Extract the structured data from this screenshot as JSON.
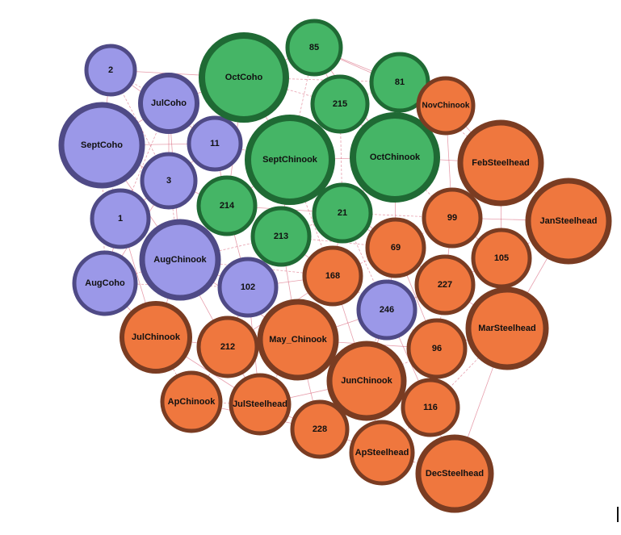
{
  "palette": {
    "purple": {
      "fill": "#9b98e8",
      "stroke": "#4f4a86"
    },
    "green": {
      "fill": "#45b566",
      "stroke": "#1f6a34"
    },
    "orange": {
      "fill": "#ef773e",
      "stroke": "#7a3c22"
    },
    "edge": "#d4506a"
  },
  "nodes": [
    {
      "id": "2",
      "label": "2",
      "group": "purple"
    },
    {
      "id": "JulCoho",
      "label": "JulCoho",
      "group": "purple"
    },
    {
      "id": "SeptCoho",
      "label": "SeptCoho",
      "group": "purple"
    },
    {
      "id": "11",
      "label": "11",
      "group": "purple"
    },
    {
      "id": "3",
      "label": "3",
      "group": "purple"
    },
    {
      "id": "1",
      "label": "1",
      "group": "purple"
    },
    {
      "id": "AugChinook",
      "label": "AugChinook",
      "group": "purple"
    },
    {
      "id": "AugCoho",
      "label": "AugCoho",
      "group": "purple"
    },
    {
      "id": "102",
      "label": "102",
      "group": "purple"
    },
    {
      "id": "246",
      "label": "246",
      "group": "purple"
    },
    {
      "id": "OctCoho",
      "label": "OctCoho",
      "group": "green"
    },
    {
      "id": "85",
      "label": "85",
      "group": "green"
    },
    {
      "id": "215",
      "label": "215",
      "group": "green"
    },
    {
      "id": "81",
      "label": "81",
      "group": "green"
    },
    {
      "id": "SeptChinook",
      "label": "SeptChinook",
      "group": "green"
    },
    {
      "id": "OctChinook",
      "label": "OctChinook",
      "group": "green"
    },
    {
      "id": "214",
      "label": "214",
      "group": "green"
    },
    {
      "id": "21",
      "label": "21",
      "group": "green"
    },
    {
      "id": "213",
      "label": "213",
      "group": "green"
    },
    {
      "id": "NovChinook",
      "label": "NovChinook",
      "group": "orange"
    },
    {
      "id": "FebSteelhead",
      "label": "FebSteelhead",
      "group": "orange"
    },
    {
      "id": "JanSteelhead",
      "label": "JanSteelhead",
      "group": "orange"
    },
    {
      "id": "99",
      "label": "99",
      "group": "orange"
    },
    {
      "id": "69",
      "label": "69",
      "group": "orange"
    },
    {
      "id": "105",
      "label": "105",
      "group": "orange"
    },
    {
      "id": "168",
      "label": "168",
      "group": "orange"
    },
    {
      "id": "227",
      "label": "227",
      "group": "orange"
    },
    {
      "id": "MarSteelhead",
      "label": "MarSteelhead",
      "group": "orange"
    },
    {
      "id": "JulChinook",
      "label": "JulChinook",
      "group": "orange"
    },
    {
      "id": "212",
      "label": "212",
      "group": "orange"
    },
    {
      "id": "May_Chinook",
      "label": "May_Chinook",
      "group": "orange"
    },
    {
      "id": "96",
      "label": "96",
      "group": "orange"
    },
    {
      "id": "JunChinook",
      "label": "JunChinook",
      "group": "orange"
    },
    {
      "id": "ApChinook",
      "label": "ApChinook",
      "group": "orange"
    },
    {
      "id": "JulSteelhead",
      "label": "JulSteelhead",
      "group": "orange"
    },
    {
      "id": "116",
      "label": "116",
      "group": "orange"
    },
    {
      "id": "228",
      "label": "228",
      "group": "orange"
    },
    {
      "id": "ApSteelhead",
      "label": "ApSteelhead",
      "group": "orange"
    },
    {
      "id": "DecSteelhead",
      "label": "DecSteelhead",
      "group": "orange"
    }
  ],
  "edges": [
    [
      "2",
      "JulCoho"
    ],
    [
      "2",
      "SeptCoho"
    ],
    [
      "2",
      "11"
    ],
    [
      "2",
      "3"
    ],
    [
      "2",
      "OctCoho"
    ],
    [
      "JulCoho",
      "SeptCoho"
    ],
    [
      "JulCoho",
      "11"
    ],
    [
      "JulCoho",
      "3"
    ],
    [
      "JulCoho",
      "OctCoho"
    ],
    [
      "JulCoho",
      "1"
    ],
    [
      "JulCoho",
      "AugChinook"
    ],
    [
      "SeptCoho",
      "3"
    ],
    [
      "SeptCoho",
      "1"
    ],
    [
      "SeptCoho",
      "11"
    ],
    [
      "SeptCoho",
      "AugChinook"
    ],
    [
      "SeptCoho",
      "AugCoho"
    ],
    [
      "11",
      "3"
    ],
    [
      "11",
      "214"
    ],
    [
      "11",
      "SeptChinook"
    ],
    [
      "11",
      "OctCoho"
    ],
    [
      "3",
      "1"
    ],
    [
      "3",
      "AugChinook"
    ],
    [
      "3",
      "214"
    ],
    [
      "3",
      "AugCoho"
    ],
    [
      "1",
      "AugChinook"
    ],
    [
      "1",
      "AugCoho"
    ],
    [
      "1",
      "JulChinook"
    ],
    [
      "AugChinook",
      "AugCoho"
    ],
    [
      "AugChinook",
      "102"
    ],
    [
      "AugChinook",
      "214"
    ],
    [
      "AugChinook",
      "213"
    ],
    [
      "AugChinook",
      "JulChinook"
    ],
    [
      "AugChinook",
      "212"
    ],
    [
      "AugChinook",
      "168"
    ],
    [
      "AugChinook",
      "May_Chinook"
    ],
    [
      "AugCoho",
      "JulChinook"
    ],
    [
      "AugCoho",
      "102"
    ],
    [
      "102",
      "213"
    ],
    [
      "102",
      "168"
    ],
    [
      "102",
      "May_Chinook"
    ],
    [
      "102",
      "212"
    ],
    [
      "102",
      "JulSteelhead"
    ],
    [
      "246",
      "168"
    ],
    [
      "246",
      "69"
    ],
    [
      "246",
      "227"
    ],
    [
      "246",
      "96"
    ],
    [
      "246",
      "JunChinook"
    ],
    [
      "246",
      "May_Chinook"
    ],
    [
      "246",
      "21"
    ],
    [
      "246",
      "116"
    ],
    [
      "OctCoho",
      "85"
    ],
    [
      "OctCoho",
      "215"
    ],
    [
      "OctCoho",
      "SeptChinook"
    ],
    [
      "OctCoho",
      "214"
    ],
    [
      "OctCoho",
      "81"
    ],
    [
      "85",
      "215"
    ],
    [
      "85",
      "81"
    ],
    [
      "85",
      "SeptChinook"
    ],
    [
      "85",
      "OctChinook"
    ],
    [
      "85",
      "NovChinook"
    ],
    [
      "215",
      "81"
    ],
    [
      "215",
      "SeptChinook"
    ],
    [
      "215",
      "OctChinook"
    ],
    [
      "215",
      "21"
    ],
    [
      "81",
      "OctChinook"
    ],
    [
      "81",
      "NovChinook"
    ],
    [
      "81",
      "FebSteelhead"
    ],
    [
      "SeptChinook",
      "OctChinook"
    ],
    [
      "SeptChinook",
      "214"
    ],
    [
      "SeptChinook",
      "21"
    ],
    [
      "SeptChinook",
      "213"
    ],
    [
      "SeptChinook",
      "69"
    ],
    [
      "SeptChinook",
      "168"
    ],
    [
      "OctChinook",
      "21"
    ],
    [
      "OctChinook",
      "NovChinook"
    ],
    [
      "OctChinook",
      "99"
    ],
    [
      "OctChinook",
      "69"
    ],
    [
      "OctChinook",
      "FebSteelhead"
    ],
    [
      "214",
      "213"
    ],
    [
      "214",
      "21"
    ],
    [
      "214",
      "102"
    ],
    [
      "21",
      "213"
    ],
    [
      "21",
      "69"
    ],
    [
      "21",
      "168"
    ],
    [
      "21",
      "99"
    ],
    [
      "213",
      "168"
    ],
    [
      "213",
      "May_Chinook"
    ],
    [
      "213",
      "69"
    ],
    [
      "NovChinook",
      "FebSteelhead"
    ],
    [
      "NovChinook",
      "99"
    ],
    [
      "FebSteelhead",
      "JanSteelhead"
    ],
    [
      "FebSteelhead",
      "99"
    ],
    [
      "FebSteelhead",
      "105"
    ],
    [
      "JanSteelhead",
      "105"
    ],
    [
      "JanSteelhead",
      "99"
    ],
    [
      "JanSteelhead",
      "MarSteelhead"
    ],
    [
      "99",
      "69"
    ],
    [
      "99",
      "105"
    ],
    [
      "99",
      "227"
    ],
    [
      "69",
      "168"
    ],
    [
      "69",
      "227"
    ],
    [
      "69",
      "96"
    ],
    [
      "69",
      "JunChinook"
    ],
    [
      "105",
      "227"
    ],
    [
      "105",
      "MarSteelhead"
    ],
    [
      "168",
      "May_Chinook"
    ],
    [
      "168",
      "JunChinook"
    ],
    [
      "168",
      "212"
    ],
    [
      "227",
      "96"
    ],
    [
      "227",
      "MarSteelhead"
    ],
    [
      "MarSteelhead",
      "96"
    ],
    [
      "MarSteelhead",
      "116"
    ],
    [
      "MarSteelhead",
      "DecSteelhead"
    ],
    [
      "JulChinook",
      "212"
    ],
    [
      "JulChinook",
      "ApChinook"
    ],
    [
      "JulChinook",
      "JulSteelhead"
    ],
    [
      "212",
      "May_Chinook"
    ],
    [
      "212",
      "ApChinook"
    ],
    [
      "212",
      "JulSteelhead"
    ],
    [
      "May_Chinook",
      "JunChinook"
    ],
    [
      "May_Chinook",
      "JulSteelhead"
    ],
    [
      "May_Chinook",
      "228"
    ],
    [
      "May_Chinook",
      "96"
    ],
    [
      "96",
      "JunChinook"
    ],
    [
      "96",
      "116"
    ],
    [
      "JunChinook",
      "116"
    ],
    [
      "JunChinook",
      "228"
    ],
    [
      "JunChinook",
      "ApSteelhead"
    ],
    [
      "JunChinook",
      "JulSteelhead"
    ],
    [
      "ApChinook",
      "JulSteelhead"
    ],
    [
      "ApChinook",
      "228"
    ],
    [
      "JulSteelhead",
      "228"
    ],
    [
      "116",
      "ApSteelhead"
    ],
    [
      "116",
      "DecSteelhead"
    ],
    [
      "228",
      "ApSteelhead"
    ],
    [
      "ApSteelhead",
      "DecSteelhead"
    ]
  ]
}
